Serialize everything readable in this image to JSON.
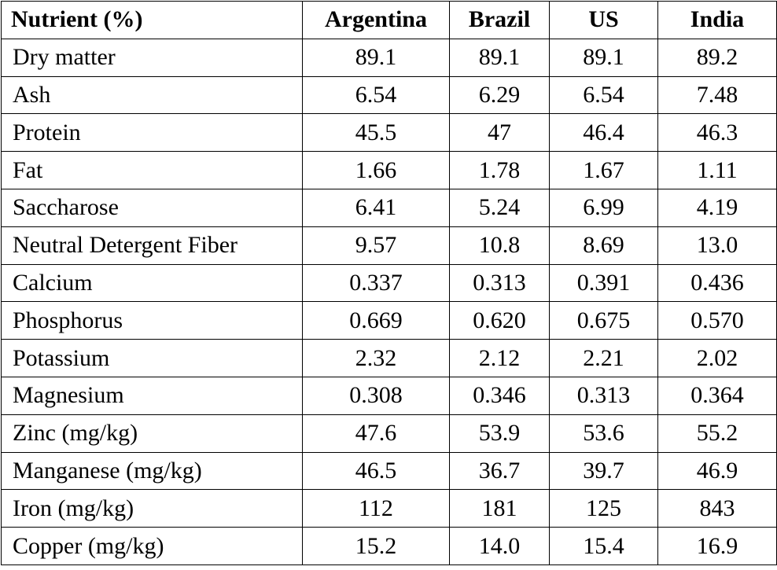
{
  "table": {
    "headers": [
      "Nutrient (%)",
      "Argentina",
      "Brazil",
      "US",
      "India"
    ],
    "rows": [
      {
        "nutrient": "Dry matter",
        "values": [
          "89.1",
          "89.1",
          "89.1",
          "89.2"
        ]
      },
      {
        "nutrient": "Ash",
        "values": [
          "6.54",
          "6.29",
          "6.54",
          "7.48"
        ]
      },
      {
        "nutrient": "Protein",
        "values": [
          "45.5",
          "47",
          "46.4",
          "46.3"
        ]
      },
      {
        "nutrient": "Fat",
        "values": [
          "1.66",
          "1.78",
          "1.67",
          "1.11"
        ]
      },
      {
        "nutrient": "Saccharose",
        "values": [
          "6.41",
          "5.24",
          "6.99",
          "4.19"
        ]
      },
      {
        "nutrient": "Neutral Detergent Fiber",
        "values": [
          "9.57",
          "10.8",
          "8.69",
          "13.0"
        ]
      },
      {
        "nutrient": "Calcium",
        "values": [
          "0.337",
          "0.313",
          "0.391",
          "0.436"
        ]
      },
      {
        "nutrient": "Phosphorus",
        "values": [
          "0.669",
          "0.620",
          "0.675",
          "0.570"
        ]
      },
      {
        "nutrient": "Potassium",
        "values": [
          "2.32",
          "2.12",
          "2.21",
          "2.02"
        ]
      },
      {
        "nutrient": "Magnesium",
        "values": [
          "0.308",
          "0.346",
          "0.313",
          "0.364"
        ]
      },
      {
        "nutrient": "Zinc (mg/kg)",
        "values": [
          "47.6",
          "53.9",
          "53.6",
          "55.2"
        ]
      },
      {
        "nutrient": "Manganese (mg/kg)",
        "values": [
          "46.5",
          "36.7",
          "39.7",
          "46.9"
        ]
      },
      {
        "nutrient": "Iron (mg/kg)",
        "values": [
          "112",
          "181",
          "125",
          "843"
        ]
      },
      {
        "nutrient": "Copper (mg/kg)",
        "values": [
          "15.2",
          "14.0",
          "15.4",
          "16.9"
        ]
      }
    ]
  }
}
